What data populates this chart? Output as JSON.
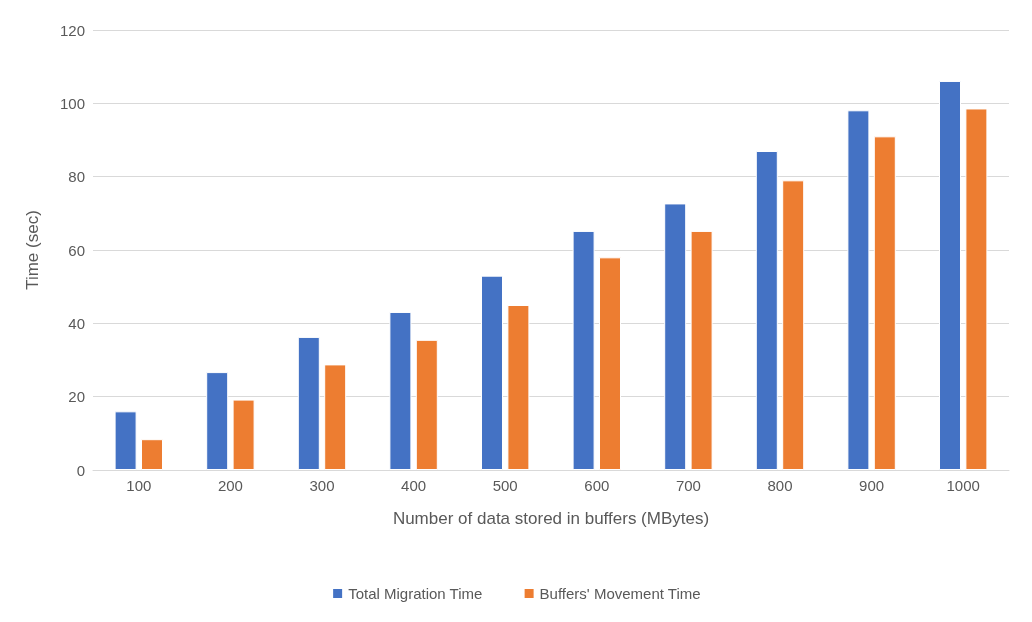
{
  "chart_data": {
    "type": "bar",
    "xlabel": "Number of data stored in buffers (MBytes)",
    "ylabel": "Time (sec)",
    "categories": [
      "100",
      "200",
      "300",
      "400",
      "500",
      "600",
      "700",
      "800",
      "900",
      "1000"
    ],
    "series": [
      {
        "name": "Total Migration Time",
        "color": "#4472c4",
        "values": [
          16.0,
          26.7,
          36.3,
          43.1,
          53.0,
          65.2,
          72.7,
          87.0,
          98.1,
          106.1
        ]
      },
      {
        "name": "Buffers' Movement Time",
        "color": "#ed7d31",
        "values": [
          8.4,
          19.2,
          28.8,
          35.5,
          45.0,
          58.0,
          65.2,
          79.0,
          91.0,
          98.6
        ]
      }
    ],
    "ylim": [
      0,
      120
    ],
    "yticks": [
      0,
      20,
      40,
      60,
      80,
      100,
      120
    ],
    "grid": "y",
    "legend": "bottom"
  }
}
